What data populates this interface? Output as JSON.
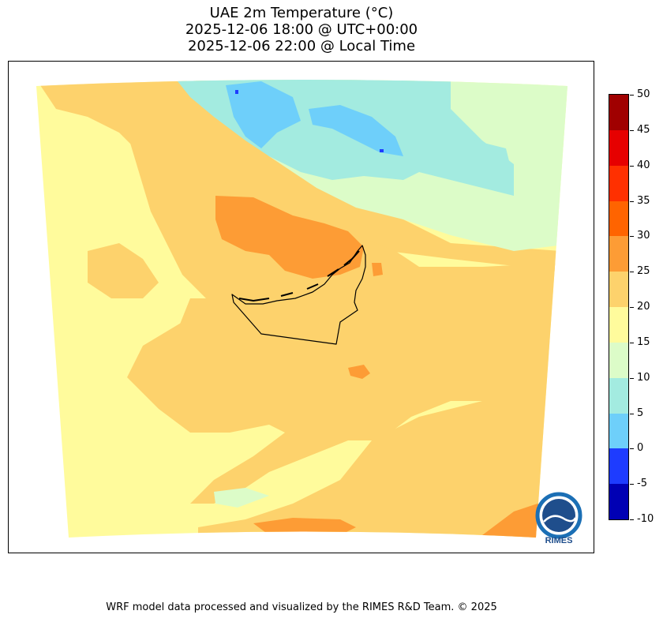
{
  "title": {
    "line1": "UAE 2m Temperature (°C)",
    "line2": "2025-12-06 18:00 @ UTC+00:00",
    "line3": "2025-12-06 22:00 @ Local Time"
  },
  "colorbar": {
    "levels": [
      {
        "from": -10,
        "to": -5,
        "color": "#0000b4"
      },
      {
        "from": -5,
        "to": 0,
        "color": "#1e3cff"
      },
      {
        "from": 0,
        "to": 5,
        "color": "#6ecffa"
      },
      {
        "from": 5,
        "to": 10,
        "color": "#a3ebe0"
      },
      {
        "from": 10,
        "to": 15,
        "color": "#dcfcc8"
      },
      {
        "from": 15,
        "to": 20,
        "color": "#fffb9c"
      },
      {
        "from": 20,
        "to": 25,
        "color": "#fdd26c"
      },
      {
        "from": 25,
        "to": 30,
        "color": "#fd9c35"
      },
      {
        "from": 30,
        "to": 35,
        "color": "#ff6400"
      },
      {
        "from": 35,
        "to": 40,
        "color": "#ff3000"
      },
      {
        "from": 40,
        "to": 45,
        "color": "#e60000"
      },
      {
        "from": 45,
        "to": 50,
        "color": "#a00000"
      }
    ],
    "tick_labels": [
      "50",
      "45",
      "40",
      "35",
      "30",
      "25",
      "20",
      "15",
      "10",
      "5",
      "0",
      "-5",
      "-10"
    ]
  },
  "logo": {
    "text": "RIMES",
    "colors": {
      "ring": "#1b6fb5",
      "inner": "#1f4e8c"
    }
  },
  "footer": "WRF model data processed and visualized by the RIMES R&D Team. © 2025"
}
